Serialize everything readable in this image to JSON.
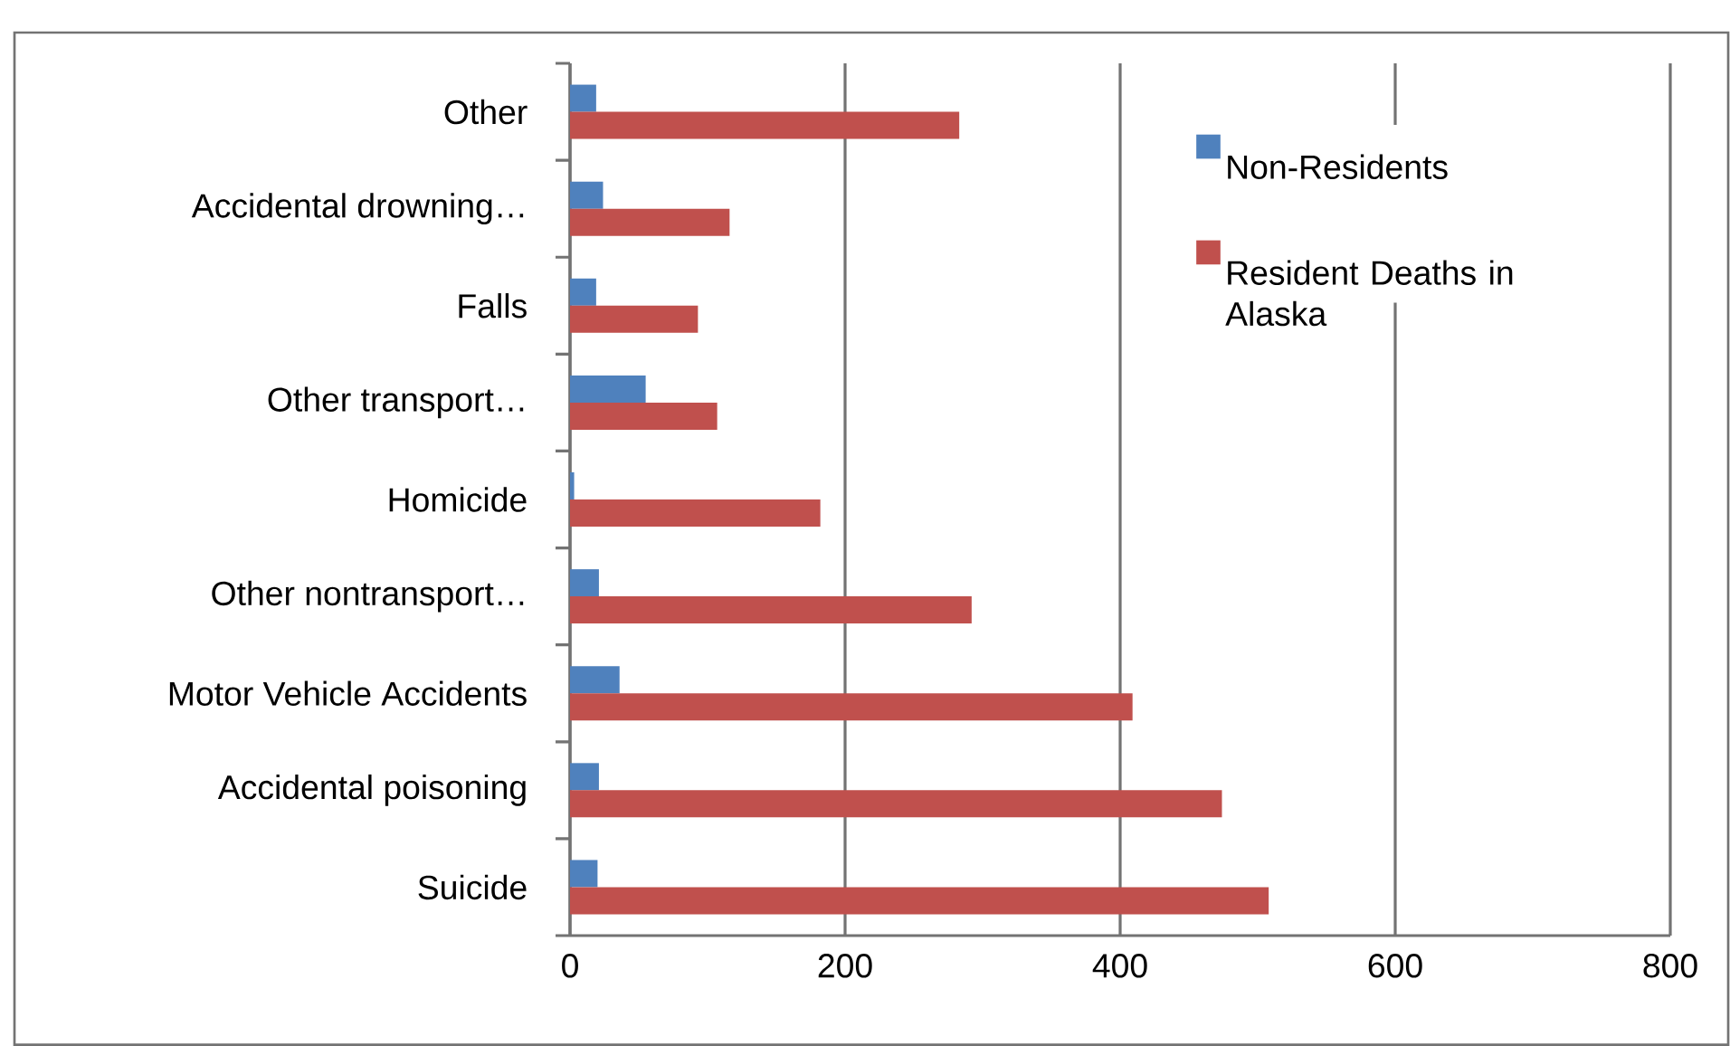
{
  "chart_data": {
    "type": "bar",
    "orientation": "horizontal",
    "categories": [
      "Other",
      "Accidental drowning…",
      "Falls",
      "Other transport…",
      "Homicide",
      "Other nontransport…",
      "Motor Vehicle Accidents",
      "Accidental poisoning",
      "Suicide"
    ],
    "series": [
      {
        "name": "Non-Residents",
        "color": "#4f81bd",
        "values": [
          19,
          24,
          19,
          55,
          3,
          21,
          36,
          21,
          20
        ]
      },
      {
        "name": "Resident Deaths in Alaska",
        "color": "#c0504d",
        "values": [
          283,
          116,
          93,
          107,
          182,
          292,
          409,
          474,
          508
        ]
      }
    ],
    "xlim": [
      0,
      800
    ],
    "xticks": [
      0,
      200,
      400,
      600,
      800
    ],
    "grid": "x",
    "legend": "top right"
  }
}
